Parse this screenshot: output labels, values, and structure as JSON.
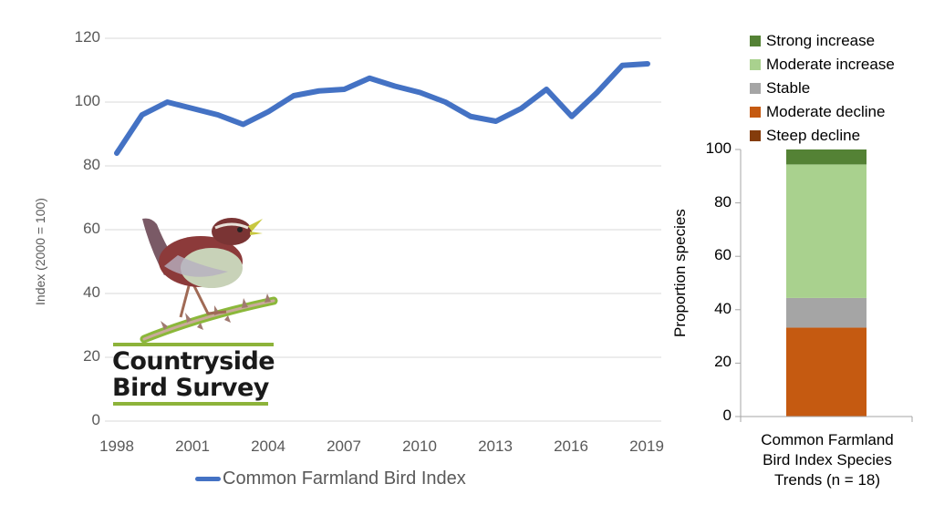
{
  "chart_data": [
    {
      "type": "line",
      "title": "",
      "xlabel": "",
      "ylabel": "Index (2000 = 100)",
      "ylim": [
        0,
        120
      ],
      "yticks": [
        0,
        20,
        40,
        60,
        80,
        100,
        120
      ],
      "xticks": [
        "1998",
        "2001",
        "2004",
        "2007",
        "2010",
        "2013",
        "2016",
        "2019"
      ],
      "grid": true,
      "legend_position": "bottom",
      "x": [
        1998,
        1999,
        2000,
        2001,
        2002,
        2003,
        2004,
        2005,
        2006,
        2007,
        2008,
        2009,
        2010,
        2011,
        2012,
        2013,
        2014,
        2015,
        2016,
        2017,
        2018,
        2019
      ],
      "series": [
        {
          "name": "Common Farmland Bird Index",
          "color": "#4472c4",
          "values": [
            84,
            96,
            100,
            98,
            96,
            93,
            97,
            102,
            103.5,
            104,
            107.5,
            105,
            103,
            100,
            95.5,
            94,
            98,
            104,
            95.5,
            103,
            111.5,
            112
          ]
        }
      ]
    },
    {
      "type": "bar",
      "stacked": true,
      "title": "",
      "xlabel": "Common Farmland Bird Index Species Trends (n = 18)",
      "ylabel": "Proportion species",
      "ylim": [
        0,
        100
      ],
      "yticks": [
        0,
        20,
        40,
        60,
        80,
        100
      ],
      "categories": [
        "Common Farmland Bird Index Species Trends (n = 18)"
      ],
      "legend_position": "top",
      "series": [
        {
          "name": "Steep decline",
          "color": "#843c0c",
          "values": [
            0
          ]
        },
        {
          "name": "Moderate decline",
          "color": "#c55a11",
          "values": [
            33.3
          ]
        },
        {
          "name": "Stable",
          "color": "#a5a5a5",
          "values": [
            11.1
          ]
        },
        {
          "name": "Moderate increase",
          "color": "#a9d18e",
          "values": [
            50.0
          ]
        },
        {
          "name": "Strong increase",
          "color": "#548235",
          "values": [
            5.6
          ]
        }
      ]
    }
  ],
  "left_chart": {
    "ylabel": "Index (2000 = 100)",
    "yticks": [
      "0",
      "20",
      "40",
      "60",
      "80",
      "100",
      "120"
    ],
    "xticks": [
      "1998",
      "2001",
      "2004",
      "2007",
      "2010",
      "2013",
      "2016",
      "2019"
    ],
    "legend_label": "Common Farmland Bird Index",
    "line_color": "#4472c4"
  },
  "right_chart": {
    "ylabel": "Proportion species",
    "yticks": [
      "0",
      "20",
      "40",
      "60",
      "80",
      "100"
    ],
    "legend": [
      {
        "label": "Strong increase",
        "color": "#548235"
      },
      {
        "label": "Moderate increase",
        "color": "#a9d18e"
      },
      {
        "label": "Stable",
        "color": "#a5a5a5"
      },
      {
        "label": "Moderate decline",
        "color": "#c55a11"
      },
      {
        "label": "Steep decline",
        "color": "#843c0c"
      }
    ],
    "caption_lines": [
      "Common Farmland",
      "Bird Index Species",
      "Trends (n = 18)"
    ]
  },
  "logo": {
    "line1": "Countryside",
    "line2": "Bird Survey",
    "icon": "wren-bird-icon"
  }
}
